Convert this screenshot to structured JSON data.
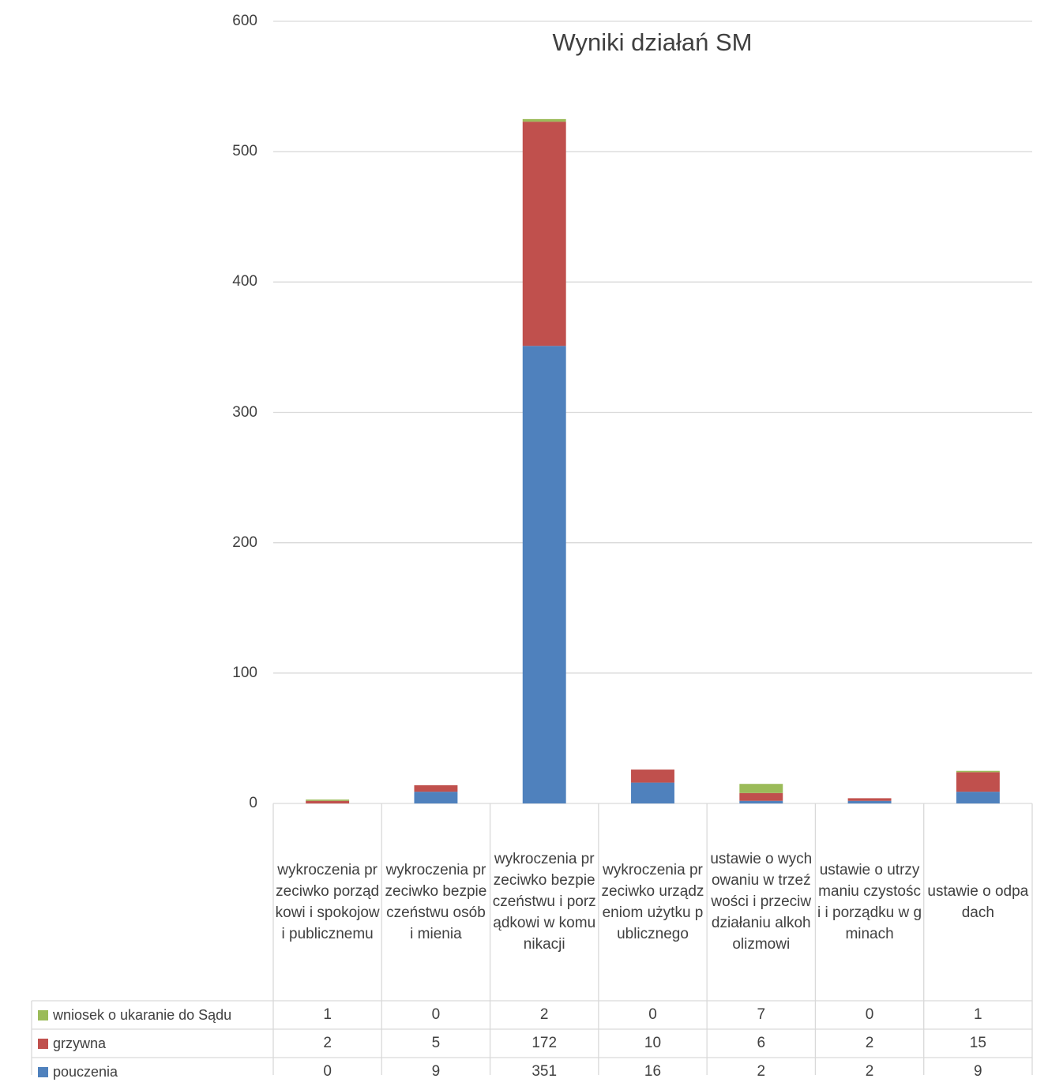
{
  "chart_data": {
    "type": "bar",
    "stacked": true,
    "title": "Wyniki działań SM",
    "ylim": [
      0,
      600
    ],
    "y_ticks": [
      0,
      100,
      200,
      300,
      400,
      500,
      600
    ],
    "grid": true,
    "legend": "data-table",
    "categories": [
      "wykroczenia przeciwko porządkowi i spokojowi publicznemu",
      "wykroczenia przeciwko bezpieczeństwu osób i mienia",
      "wykroczenia przeciwko bezpieczeństwu i porządkowi w komunikacji",
      "wykroczenia przeciwko urządzeniom użytku publicznego",
      "ustawie o wychowaniu w trzeźwości i przeciwdziałaniu alkoholizmowi",
      "ustawie o utrzymaniu czystości i porządku w gminach",
      "ustawie o odpadach"
    ],
    "series": [
      {
        "name": "pouczenia",
        "color": "#4F81BD",
        "values": [
          0,
          9,
          351,
          16,
          2,
          2,
          9
        ]
      },
      {
        "name": "grzywna",
        "color": "#C0504D",
        "values": [
          2,
          5,
          172,
          10,
          6,
          2,
          15
        ]
      },
      {
        "name": "wniosek o ukaranie do Sądu",
        "color": "#9BBB59",
        "values": [
          1,
          0,
          2,
          0,
          7,
          0,
          1
        ]
      }
    ]
  }
}
